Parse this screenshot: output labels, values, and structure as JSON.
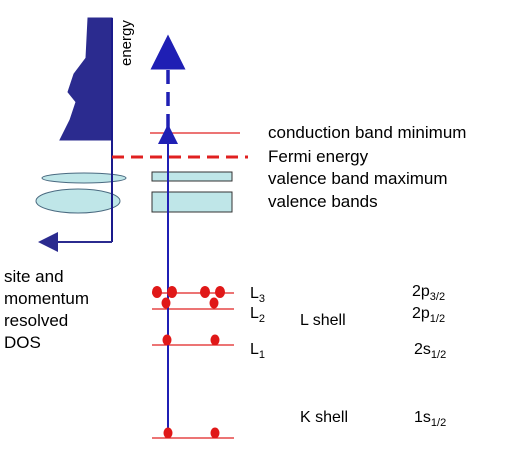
{
  "labels": {
    "energy_axis": "energy",
    "dos_label": [
      "site and",
      "momentum",
      "resolved",
      "DOS"
    ],
    "conduction_band_minimum": "conduction band minimum",
    "fermi_energy": "Fermi energy",
    "valence_band_maximum": "valence band maximum",
    "valence_bands": "valence bands",
    "l3": {
      "main": "L",
      "sub": "3"
    },
    "l2": {
      "main": "L",
      "sub": "2"
    },
    "l1": {
      "main": "L",
      "sub": "1"
    },
    "l_shell": "L shell",
    "k_shell": "K shell",
    "orb_2p32": {
      "main": "2p",
      "sub": "3/2"
    },
    "orb_2p12": {
      "main": "2p",
      "sub": "1/2"
    },
    "orb_2s12": {
      "main": "2s",
      "sub": "1/2"
    },
    "orb_1s12": {
      "main": "1s",
      "sub": "1/2"
    }
  },
  "colors": {
    "axis_blue": "#1a1a8c",
    "dos_fill": "#2b2b8f",
    "band_fill": "#bfe6e8",
    "level_red": "#e02020",
    "electron_red": "#e01818",
    "arrow_blue": "#1f1fb4"
  }
}
